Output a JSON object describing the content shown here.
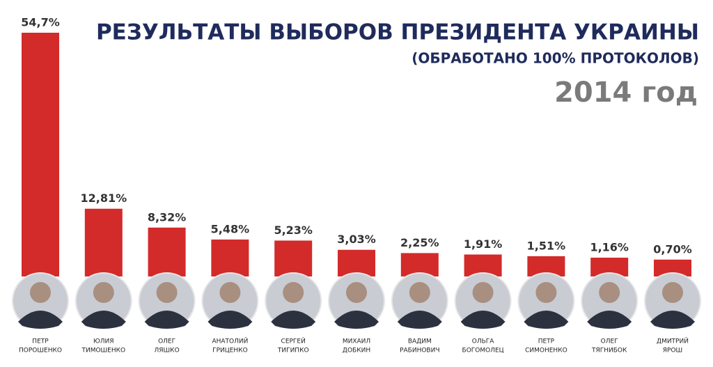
{
  "chart_data": {
    "type": "bar",
    "title": "РЕЗУЛЬТАТЫ ВЫБОРОВ ПРЕЗИДЕНТА УКРАИНЫ",
    "subtitle": "(ОБРАБОТАНО 100% ПРОТОКОЛОВ)",
    "year_label": "2014 год",
    "categories": [
      [
        "ПЕТР",
        "ПОРОШЕНКО"
      ],
      [
        "ЮЛИЯ",
        "ТИМОШЕНКО"
      ],
      [
        "ОЛЕГ",
        "ЛЯШКО"
      ],
      [
        "АНАТОЛИЙ",
        "ГРИЦЕНКО"
      ],
      [
        "СЕРГЕЙ",
        "ТИГИПКО"
      ],
      [
        "МИХАИЛ",
        "ДОБКИН"
      ],
      [
        "ВАДИМ",
        "РАБИНОВИЧ"
      ],
      [
        "ОЛЬГА",
        "БОГОМОЛЕЦ"
      ],
      [
        "ПЕТР",
        "СИМОНЕНКО"
      ],
      [
        "ОЛЕГ",
        "ТЯГНИБОК"
      ],
      [
        "ДМИТРИЙ",
        "ЯРОШ"
      ]
    ],
    "values": [
      54.7,
      12.81,
      8.32,
      5.48,
      5.23,
      3.03,
      2.25,
      1.91,
      1.51,
      1.16,
      0.7
    ],
    "value_labels": [
      "54,7%",
      "12,81%",
      "8,32%",
      "5,48%",
      "5,23%",
      "3,03%",
      "2,25%",
      "1,91%",
      "1,51%",
      "1,16%",
      "0,70%"
    ],
    "color": "#d32a2a"
  }
}
